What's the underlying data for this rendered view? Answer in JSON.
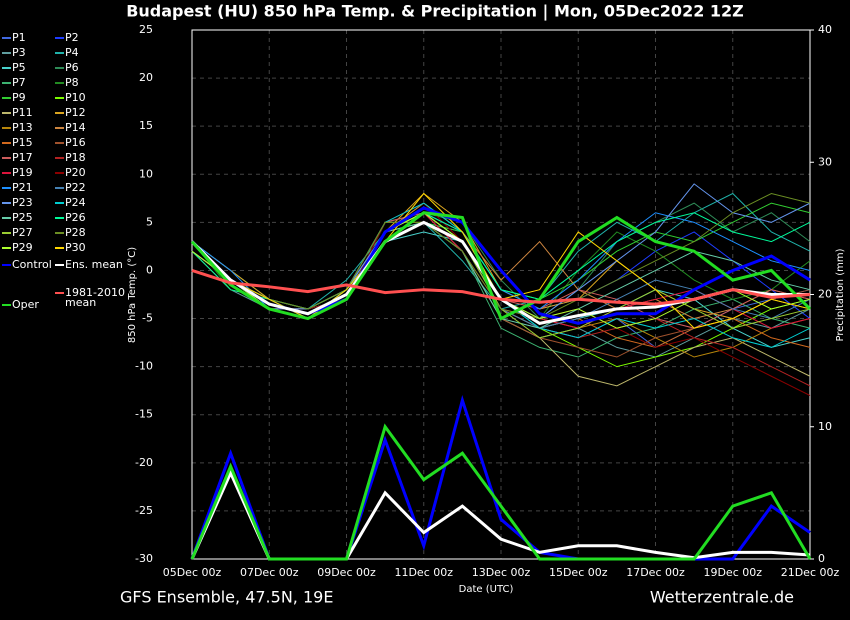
{
  "chart_data": {
    "type": "line",
    "title": "Budapest  (HU)  850 hPa Temp. & Precipitation | Mon, 05Dec2022 12Z",
    "footer_left": "GFS Ensemble, 47.5N, 19E",
    "footer_right": "Wetterzentrale.de",
    "xlabel": "Date (UTC)",
    "ylabel": "850 hPa Temp. (°C)",
    "y2label": "Precipitation (mm)",
    "categories": [
      "05Dec 00z",
      null,
      "07Dec 00z",
      null,
      "09Dec 00z",
      null,
      "11Dec 00z",
      null,
      "13Dec 00z",
      null,
      "15Dec 00z",
      null,
      "17Dec 00z",
      null,
      "19Dec 00z",
      null,
      "21Dec 00z"
    ],
    "ylim": [
      -30,
      25
    ],
    "yticks": [
      -30,
      -25,
      -20,
      -15,
      -10,
      -5,
      0,
      5,
      10,
      15,
      20,
      25
    ],
    "y2lim": [
      0,
      40
    ],
    "y2ticks": [
      0,
      10,
      20,
      30,
      40
    ],
    "grid": true,
    "series": [
      {
        "name": "P1",
        "color": "#4169e1",
        "values": [
          3,
          -1,
          -4,
          -5,
          -2,
          4,
          6,
          3,
          -4,
          -6,
          -7,
          -5,
          -8,
          -6,
          -4,
          -3,
          -2
        ]
      },
      {
        "name": "P2",
        "color": "#1e3cff",
        "values": [
          3,
          -1,
          -3,
          -4,
          -3,
          3,
          5,
          4,
          -2,
          -4,
          -3,
          -1,
          2,
          4,
          1,
          -2,
          -5
        ]
      },
      {
        "name": "P3",
        "color": "#5f9ea0",
        "values": [
          2,
          -2,
          -4,
          -5,
          -3,
          5,
          6,
          2,
          -5,
          -7,
          -6,
          -8,
          -9,
          -7,
          -5,
          -6,
          -4
        ]
      },
      {
        "name": "P4",
        "color": "#20b2aa",
        "values": [
          3,
          0,
          -3,
          -4,
          -1,
          4,
          5,
          1,
          -4,
          -3,
          2,
          5,
          3,
          6,
          8,
          4,
          2
        ]
      },
      {
        "name": "P5",
        "color": "#48d1cc",
        "values": [
          3,
          -1,
          -3,
          -5,
          -2,
          3,
          4,
          3,
          -3,
          -6,
          -5,
          -4,
          -2,
          -3,
          -6,
          -8,
          -7
        ]
      },
      {
        "name": "P6",
        "color": "#2e8b57",
        "values": [
          2,
          -1,
          -4,
          -4,
          -3,
          4,
          6,
          5,
          -1,
          -5,
          -2,
          3,
          5,
          7,
          4,
          6,
          3
        ]
      },
      {
        "name": "P7",
        "color": "#3cb371",
        "values": [
          3,
          -1,
          -3,
          -5,
          -2,
          5,
          5,
          2,
          -6,
          -8,
          -9,
          -7,
          -6,
          -4,
          -3,
          -5,
          -6
        ]
      },
      {
        "name": "P8",
        "color": "#228b22",
        "values": [
          3,
          -2,
          -3,
          -4,
          -2,
          4,
          7,
          4,
          -3,
          -5,
          0,
          4,
          2,
          -1,
          -3,
          -2,
          1
        ]
      },
      {
        "name": "P9",
        "color": "#32cd32",
        "values": [
          2,
          -1,
          -4,
          -5,
          -3,
          3,
          5,
          4,
          -2,
          -3,
          -1,
          2,
          4,
          3,
          5,
          7,
          6
        ]
      },
      {
        "name": "P10",
        "color": "#7cfc00",
        "values": [
          3,
          -1,
          -3,
          -5,
          -2,
          4,
          6,
          3,
          -4,
          -6,
          -8,
          -10,
          -9,
          -8,
          -6,
          -4,
          -3
        ]
      },
      {
        "name": "P11",
        "color": "#bdb76b",
        "values": [
          3,
          -1,
          -4,
          -4,
          -3,
          3,
          6,
          2,
          -5,
          -7,
          -11,
          -12,
          -10,
          -8,
          -7,
          -9,
          -11
        ]
      },
      {
        "name": "P12",
        "color": "#daa520",
        "values": [
          3,
          0,
          -3,
          -5,
          -2,
          4,
          8,
          5,
          -2,
          -4,
          -3,
          1,
          -2,
          -4,
          -5,
          -3,
          -4
        ]
      },
      {
        "name": "P13",
        "color": "#b8860b",
        "values": [
          2,
          -1,
          -4,
          -5,
          -3,
          5,
          5,
          3,
          -3,
          -5,
          -6,
          -5,
          -7,
          -9,
          -8,
          -6,
          -5
        ]
      },
      {
        "name": "P14",
        "color": "#cd853f",
        "values": [
          3,
          -1,
          -3,
          -4,
          -2,
          4,
          7,
          4,
          -1,
          3,
          -2,
          -4,
          -3,
          -5,
          -4,
          -2,
          -3
        ]
      },
      {
        "name": "P15",
        "color": "#d2691e",
        "values": [
          3,
          -1,
          -4,
          -5,
          -2,
          3,
          6,
          3,
          -4,
          -6,
          -5,
          -7,
          -8,
          -6,
          -5,
          -7,
          -8
        ]
      },
      {
        "name": "P16",
        "color": "#a0522d",
        "values": [
          2,
          -2,
          -3,
          -5,
          -3,
          4,
          5,
          2,
          -5,
          -7,
          -8,
          -9,
          -7,
          -6,
          -5,
          -3,
          -2
        ]
      },
      {
        "name": "P17",
        "color": "#cd5c5c",
        "values": [
          3,
          -1,
          -4,
          -4,
          -2,
          5,
          6,
          4,
          -3,
          -4,
          -2,
          -3,
          -5,
          -6,
          -4,
          -2,
          -3
        ]
      },
      {
        "name": "P18",
        "color": "#b22222",
        "values": [
          3,
          -1,
          -3,
          -5,
          -3,
          3,
          5,
          3,
          -4,
          -6,
          -7,
          -6,
          -5,
          -7,
          -8,
          -10,
          -12
        ]
      },
      {
        "name": "P19",
        "color": "#dc143c",
        "values": [
          2,
          -1,
          -4,
          -5,
          -2,
          4,
          6,
          2,
          -4,
          -5,
          -6,
          -4,
          -3,
          -2,
          -4,
          -6,
          -5
        ]
      },
      {
        "name": "P20",
        "color": "#8b0000",
        "values": [
          3,
          -1,
          -3,
          -4,
          -3,
          5,
          7,
          3,
          -3,
          -5,
          -4,
          -6,
          -8,
          -7,
          -9,
          -11,
          -13
        ]
      },
      {
        "name": "P21",
        "color": "#1e90ff",
        "values": [
          3,
          0,
          -4,
          -5,
          -2,
          4,
          6,
          4,
          -2,
          -4,
          -1,
          3,
          6,
          5,
          3,
          1,
          0
        ]
      },
      {
        "name": "P22",
        "color": "#4682b4",
        "values": [
          3,
          -1,
          -3,
          -5,
          -3,
          3,
          5,
          3,
          -4,
          -6,
          -5,
          -3,
          -1,
          -2,
          -4,
          -5,
          -3
        ]
      },
      {
        "name": "P23",
        "color": "#6495ed",
        "values": [
          2,
          -1,
          -4,
          -4,
          -2,
          4,
          6,
          3,
          -3,
          -5,
          -2,
          1,
          4,
          9,
          6,
          5,
          7
        ]
      },
      {
        "name": "P24",
        "color": "#00ced1",
        "values": [
          3,
          -1,
          -3,
          -5,
          -2,
          5,
          7,
          4,
          -3,
          -6,
          -7,
          -5,
          -6,
          -5,
          -7,
          -8,
          -6
        ]
      },
      {
        "name": "P25",
        "color": "#66cdaa",
        "values": [
          3,
          -1,
          -4,
          -5,
          -3,
          4,
          5,
          2,
          -5,
          -6,
          -4,
          -2,
          0,
          2,
          1,
          -1,
          -2
        ]
      },
      {
        "name": "P26",
        "color": "#00fa9a",
        "values": [
          2,
          -2,
          -3,
          -4,
          -2,
          3,
          6,
          4,
          -2,
          -3,
          0,
          3,
          5,
          6,
          4,
          3,
          5
        ]
      },
      {
        "name": "P27",
        "color": "#9acd32",
        "values": [
          3,
          -1,
          -4,
          -5,
          -3,
          4,
          6,
          3,
          -4,
          -7,
          -6,
          -4,
          -2,
          -4,
          -6,
          -5,
          -4
        ]
      },
      {
        "name": "P28",
        "color": "#6b8e23",
        "values": [
          3,
          -1,
          -3,
          -4,
          -2,
          5,
          5,
          2,
          -4,
          -5,
          -3,
          -1,
          1,
          3,
          6,
          8,
          7
        ]
      },
      {
        "name": "P29",
        "color": "#adff2f",
        "values": [
          2,
          -1,
          -4,
          -5,
          -3,
          4,
          6,
          3,
          -3,
          -5,
          -4,
          -6,
          -5,
          -3,
          -2,
          -4,
          -3
        ]
      },
      {
        "name": "P30",
        "color": "#ffd700",
        "values": [
          3,
          -1,
          -3,
          -5,
          -2,
          3,
          8,
          4,
          -3,
          -2,
          4,
          1,
          -2,
          -6,
          -5,
          -3,
          -4
        ]
      },
      {
        "name": "Control",
        "color": "#0000ff",
        "values": [
          3,
          -1,
          -3.5,
          -4.5,
          -3,
          4,
          6.5,
          5,
          0,
          -4.5,
          -5.5,
          -4.5,
          -4.5,
          -2,
          0,
          1.5,
          -1
        ],
        "precip": [
          0,
          8,
          0,
          0,
          0,
          9,
          1,
          12,
          3,
          0.5,
          0,
          0,
          0,
          0,
          0,
          4,
          2
        ]
      },
      {
        "name": "Ens. mean",
        "color": "#ffffff",
        "values": [
          3,
          -1,
          -3.5,
          -4.5,
          -2.5,
          3,
          5,
          3,
          -3,
          -5.5,
          -4.7,
          -4,
          -3.8,
          -3,
          -2,
          -2.5,
          -2.5
        ],
        "precip": [
          0,
          6.5,
          0,
          0,
          0,
          5,
          2,
          4,
          1.5,
          0.5,
          1,
          1,
          0.5,
          0.1,
          0.5,
          0.5,
          0.3
        ]
      },
      {
        "name": "Oper",
        "color": "#22dd22",
        "values": [
          3,
          -1.5,
          -4,
          -5,
          -3,
          3,
          6,
          5.5,
          -5,
          -3,
          3,
          5.5,
          3,
          2,
          -1,
          0,
          -4
        ],
        "precip": [
          0,
          7,
          0,
          0,
          0,
          10,
          6,
          8,
          4,
          0,
          0,
          0,
          0,
          0,
          4,
          5,
          0
        ]
      },
      {
        "name": "1981-2010 mean",
        "color": "#ff5050",
        "values": [
          0,
          -1.3,
          -1.7,
          -2.2,
          -1.5,
          -2.3,
          -2,
          -2.2,
          -3,
          -3.3,
          -3,
          -3.3,
          -3.5,
          -3,
          -2,
          -2.8,
          -2.5
        ]
      }
    ]
  }
}
